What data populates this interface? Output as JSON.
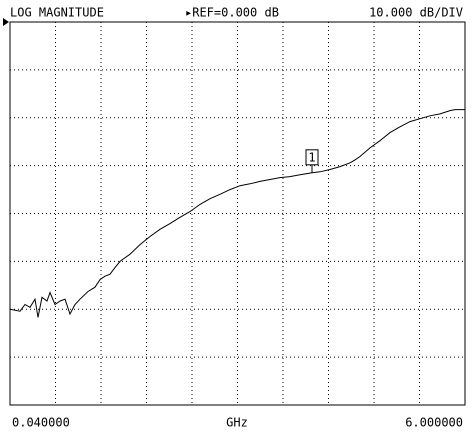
{
  "chart_data": {
    "type": "line",
    "title": "LOG MAGNITUDE",
    "reference": "▸REF=0.000 dB",
    "scale": "10.000 dB/DIV",
    "x_label": "GHz",
    "xlim": [
      0.04,
      6
    ],
    "ylim": [
      -80,
      0
    ],
    "xticks": [
      {
        "value": 0.04,
        "label": "0.040000"
      },
      {
        "value": 6,
        "label": "6.000000"
      }
    ],
    "grid": {
      "x_divisions": 10,
      "y_divisions": 8
    },
    "series": [
      {
        "color": "#000000",
        "x": [
          0.04,
          0.171,
          0.236,
          0.302,
          0.367,
          0.407,
          0.459,
          0.525,
          0.564,
          0.629,
          0.695,
          0.76,
          0.826,
          0.891,
          0.957,
          1.062,
          1.153,
          1.219,
          1.284,
          1.349,
          1.415,
          1.481,
          1.612,
          1.743,
          1.874,
          2.005,
          2.136,
          2.267,
          2.398,
          2.529,
          2.66,
          2.791,
          2.922,
          3.053,
          3.184,
          3.315,
          3.446,
          3.577,
          3.708,
          3.839,
          3.996,
          4.101,
          4.232,
          4.363,
          4.494,
          4.559,
          4.625,
          4.756,
          4.887,
          5.018,
          5.149,
          5.28,
          5.411,
          5.542,
          5.673,
          5.804,
          5.869,
          6.0
        ],
        "values": [
          -60.0,
          -60.4,
          -59.0,
          -59.6,
          -57.9,
          -61.7,
          -57.5,
          -58.3,
          -56.5,
          -59.0,
          -58.3,
          -57.9,
          -61.0,
          -59.0,
          -57.9,
          -56.3,
          -55.4,
          -53.8,
          -53.1,
          -52.7,
          -51.3,
          -50.0,
          -48.5,
          -46.5,
          -44.8,
          -43.3,
          -42.1,
          -40.8,
          -39.6,
          -38.1,
          -36.9,
          -36.0,
          -35.0,
          -34.2,
          -33.8,
          -33.3,
          -32.9,
          -32.5,
          -32.3,
          -31.9,
          -31.5,
          -31.3,
          -30.8,
          -30.2,
          -29.4,
          -28.8,
          -28.1,
          -26.3,
          -24.8,
          -23.1,
          -21.9,
          -20.8,
          -20.2,
          -19.6,
          -19.2,
          -18.5,
          -18.3,
          -18.3
        ]
      }
    ],
    "markers": [
      {
        "label": "1",
        "x": 3.996
      }
    ]
  }
}
